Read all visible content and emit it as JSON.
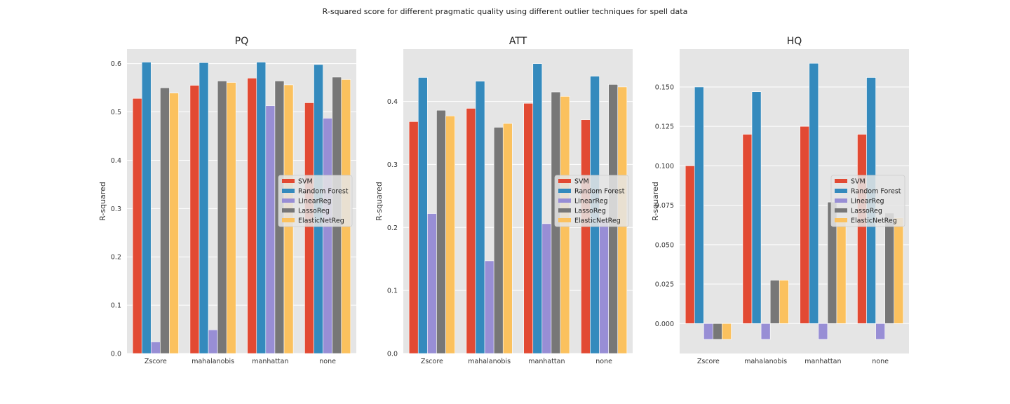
{
  "figure": {
    "suptitle": "R-squared score for different pragmatic quality using different outlier techniques for spell data"
  },
  "chart_data": [
    {
      "type": "bar",
      "title": "PQ",
      "xlabel": "",
      "ylabel": "R-squared",
      "categories": [
        "Zscore",
        "mahalanobis",
        "manhattan",
        "none"
      ],
      "ylim": [
        0,
        0.63
      ],
      "yticks": [
        0.0,
        0.1,
        0.2,
        0.3,
        0.4,
        0.5,
        0.6
      ],
      "ytick_labels": [
        "0.0",
        "0.1",
        "0.2",
        "0.3",
        "0.4",
        "0.5",
        "0.6"
      ],
      "grid": true,
      "legend_position": "center-right",
      "series": [
        {
          "name": "SVM",
          "color": "#E24A33",
          "values": [
            0.528,
            0.555,
            0.57,
            0.519
          ]
        },
        {
          "name": "Random Forest",
          "color": "#348ABD",
          "values": [
            0.603,
            0.602,
            0.603,
            0.598
          ]
        },
        {
          "name": "LinearReg",
          "color": "#988ED5",
          "values": [
            0.024,
            0.049,
            0.513,
            0.487
          ]
        },
        {
          "name": "LassoReg",
          "color": "#777777",
          "values": [
            0.55,
            0.564,
            0.564,
            0.572
          ]
        },
        {
          "name": "ElasticNetReg",
          "color": "#FBC15E",
          "values": [
            0.539,
            0.561,
            0.556,
            0.567
          ]
        }
      ]
    },
    {
      "type": "bar",
      "title": "ATT",
      "xlabel": "",
      "ylabel": "R-squared",
      "categories": [
        "Zscore",
        "mahalanobis",
        "manhattan",
        "none"
      ],
      "ylim": [
        0,
        0.483
      ],
      "yticks": [
        0.0,
        0.1,
        0.2,
        0.3,
        0.4
      ],
      "ytick_labels": [
        "0.0",
        "0.1",
        "0.2",
        "0.3",
        "0.4"
      ],
      "grid": true,
      "legend_position": "center-right",
      "series": [
        {
          "name": "SVM",
          "color": "#E24A33",
          "values": [
            0.368,
            0.389,
            0.397,
            0.371
          ]
        },
        {
          "name": "Random Forest",
          "color": "#348ABD",
          "values": [
            0.438,
            0.432,
            0.46,
            0.44
          ]
        },
        {
          "name": "LinearReg",
          "color": "#988ED5",
          "values": [
            0.222,
            0.147,
            0.206,
            0.212
          ]
        },
        {
          "name": "LassoReg",
          "color": "#777777",
          "values": [
            0.386,
            0.359,
            0.415,
            0.427
          ]
        },
        {
          "name": "ElasticNetReg",
          "color": "#FBC15E",
          "values": [
            0.377,
            0.365,
            0.408,
            0.423
          ]
        }
      ]
    },
    {
      "type": "bar",
      "title": "HQ",
      "xlabel": "",
      "ylabel": "R-squared",
      "categories": [
        "Zscore",
        "mahalanobis",
        "manhattan",
        "none"
      ],
      "ylim": [
        -0.019,
        0.174
      ],
      "yticks": [
        0.0,
        0.025,
        0.05,
        0.075,
        0.1,
        0.125,
        0.15
      ],
      "ytick_labels": [
        "0.000",
        "0.025",
        "0.050",
        "0.075",
        "0.100",
        "0.125",
        "0.150"
      ],
      "grid": true,
      "legend_position": "center-right",
      "series": [
        {
          "name": "SVM",
          "color": "#E24A33",
          "values": [
            0.1,
            0.12,
            0.125,
            0.12
          ]
        },
        {
          "name": "Random Forest",
          "color": "#348ABD",
          "values": [
            0.15,
            0.147,
            0.165,
            0.156
          ]
        },
        {
          "name": "LinearReg",
          "color": "#988ED5",
          "values": [
            -0.01,
            -0.01,
            -0.01,
            -0.01
          ]
        },
        {
          "name": "LassoReg",
          "color": "#777777",
          "values": [
            -0.01,
            0.0275,
            0.077,
            0.07
          ]
        },
        {
          "name": "ElasticNetReg",
          "color": "#FBC15E",
          "values": [
            -0.01,
            0.0275,
            0.067,
            0.067
          ]
        }
      ]
    }
  ]
}
